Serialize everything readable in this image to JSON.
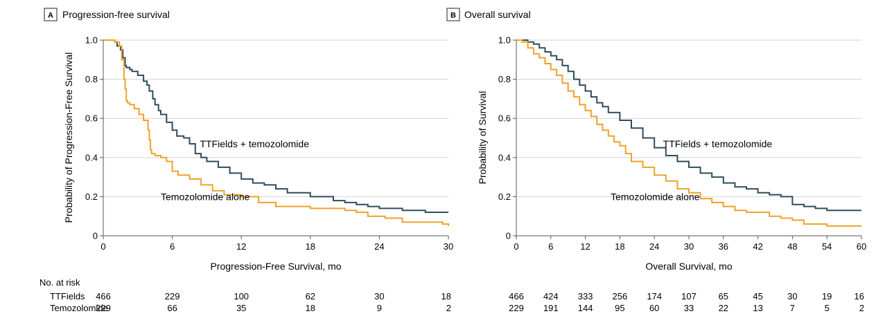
{
  "colors": {
    "ttfields": "#2e4c5a",
    "temozolomide": "#f0a12a",
    "grid": "#d4d4d4",
    "axis": "#555555"
  },
  "chart_data": [
    {
      "type": "line",
      "panel_letter": "A",
      "title": "Progression-free survival",
      "xlabel": "Progression-Free Survival, mo",
      "ylabel": "Probability of Progression-Free Survival",
      "xlim": [
        0,
        30
      ],
      "ylim": [
        0,
        1
      ],
      "xticks": [
        0,
        6,
        12,
        18,
        24,
        30
      ],
      "yticks": [
        0,
        0.2,
        0.4,
        0.6,
        0.8,
        1.0
      ],
      "ytick_labels": [
        "0",
        "0.2",
        "0.4",
        "0.6",
        "0.8",
        "1.0"
      ],
      "grid": true,
      "series": [
        {
          "name": "TTFields + temozolomide",
          "color_key": "ttfields",
          "x": [
            0,
            1.0,
            1.2,
            1.5,
            1.7,
            1.9,
            2.0,
            2.3,
            2.5,
            3.0,
            3.5,
            3.8,
            4.0,
            4.3,
            4.5,
            4.8,
            5.0,
            5.5,
            6.0,
            6.4,
            7.0,
            7.5,
            8.0,
            8.5,
            9.0,
            10.0,
            11.0,
            12.0,
            13.0,
            14.0,
            15.0,
            16.0,
            18.0,
            20.0,
            21.0,
            22.0,
            23.0,
            24.0,
            26.0,
            28.0,
            30.0
          ],
          "y": [
            1.0,
            0.99,
            0.97,
            0.95,
            0.91,
            0.87,
            0.86,
            0.85,
            0.84,
            0.82,
            0.79,
            0.77,
            0.74,
            0.7,
            0.67,
            0.64,
            0.62,
            0.58,
            0.54,
            0.51,
            0.5,
            0.47,
            0.42,
            0.4,
            0.38,
            0.35,
            0.32,
            0.29,
            0.27,
            0.26,
            0.24,
            0.22,
            0.2,
            0.18,
            0.17,
            0.16,
            0.15,
            0.14,
            0.13,
            0.12,
            0.12
          ]
        },
        {
          "name": "Temozolomide alone",
          "color_key": "temozolomide",
          "x": [
            0,
            0.6,
            1.0,
            1.4,
            1.6,
            1.8,
            1.9,
            2.0,
            2.1,
            2.3,
            2.7,
            3.1,
            3.5,
            3.9,
            4.0,
            4.1,
            4.2,
            4.5,
            5.0,
            5.5,
            6.0,
            6.5,
            7.5,
            8.5,
            9.5,
            10.5,
            12.0,
            13.5,
            15.0,
            18.0,
            21.0,
            22.0,
            23.0,
            24.5,
            26.0,
            28.0,
            29.5,
            30.0
          ],
          "y": [
            1.0,
            1.0,
            0.99,
            0.97,
            0.9,
            0.8,
            0.75,
            0.69,
            0.68,
            0.67,
            0.65,
            0.62,
            0.59,
            0.54,
            0.49,
            0.44,
            0.42,
            0.41,
            0.4,
            0.38,
            0.33,
            0.31,
            0.29,
            0.26,
            0.23,
            0.21,
            0.2,
            0.17,
            0.15,
            0.14,
            0.13,
            0.12,
            0.1,
            0.09,
            0.07,
            0.07,
            0.06,
            0.05
          ]
        }
      ],
      "annotations": [
        {
          "text": "TTFields + temozolomide",
          "x": 8.4,
          "y": 0.47
        },
        {
          "text": "Temozolomide alone",
          "x": 5.0,
          "y": 0.2
        }
      ],
      "risk_table": {
        "title": "No. at risk",
        "times": [
          0,
          6,
          12,
          18,
          24,
          30
        ],
        "rows": [
          {
            "label": "TTFields",
            "values": [
              466,
              229,
              100,
              62,
              30,
              18
            ]
          },
          {
            "label": "Temozolomide",
            "values": [
              229,
              66,
              35,
              18,
              9,
              2
            ]
          }
        ]
      }
    },
    {
      "type": "line",
      "panel_letter": "B",
      "title": "Overall survival",
      "xlabel": "Overall Survival, mo",
      "ylabel": "Probability of Survival",
      "xlim": [
        0,
        60
      ],
      "ylim": [
        0,
        1
      ],
      "xticks": [
        0,
        6,
        12,
        18,
        24,
        30,
        36,
        42,
        48,
        54,
        60
      ],
      "yticks": [
        0,
        0.2,
        0.4,
        0.6,
        0.8,
        1.0
      ],
      "ytick_labels": [
        "0",
        "0.2",
        "0.4",
        "0.6",
        "0.8",
        "1.0"
      ],
      "grid": true,
      "series": [
        {
          "name": "TTFields + temozolomide",
          "color_key": "ttfields",
          "x": [
            0,
            2,
            3,
            4,
            5,
            6,
            7,
            8,
            9,
            10,
            11,
            12,
            13,
            14,
            15,
            16,
            18,
            20,
            22,
            24,
            26,
            28,
            30,
            32,
            34,
            36,
            38,
            40,
            42,
            44,
            46,
            47.5,
            48,
            50,
            52,
            54,
            56,
            58,
            60
          ],
          "y": [
            1.0,
            0.99,
            0.98,
            0.96,
            0.94,
            0.92,
            0.9,
            0.87,
            0.84,
            0.8,
            0.77,
            0.74,
            0.71,
            0.68,
            0.66,
            0.63,
            0.59,
            0.55,
            0.5,
            0.45,
            0.41,
            0.38,
            0.35,
            0.32,
            0.3,
            0.27,
            0.25,
            0.24,
            0.22,
            0.21,
            0.2,
            0.2,
            0.16,
            0.15,
            0.14,
            0.13,
            0.13,
            0.13,
            0.13
          ]
        },
        {
          "name": "Temozolomide alone",
          "color_key": "temozolomide",
          "x": [
            0,
            1,
            2,
            3,
            4,
            5,
            6,
            7,
            8,
            9,
            10,
            11,
            12,
            13,
            14,
            15,
            16,
            17,
            18,
            19,
            20,
            22,
            24,
            26,
            28,
            30,
            32,
            34,
            36,
            38,
            40,
            42,
            44,
            46,
            48,
            50,
            52,
            54,
            56,
            58,
            60
          ],
          "y": [
            1.0,
            0.99,
            0.96,
            0.93,
            0.91,
            0.88,
            0.85,
            0.82,
            0.78,
            0.74,
            0.71,
            0.67,
            0.64,
            0.61,
            0.57,
            0.54,
            0.51,
            0.48,
            0.46,
            0.42,
            0.38,
            0.35,
            0.31,
            0.28,
            0.24,
            0.22,
            0.19,
            0.17,
            0.15,
            0.13,
            0.12,
            0.12,
            0.1,
            0.09,
            0.08,
            0.06,
            0.06,
            0.05,
            0.05,
            0.05,
            0.05
          ]
        }
      ],
      "annotations": [
        {
          "text": "TTFields + temozolomide",
          "x": 25.5,
          "y": 0.47
        },
        {
          "text": "Temozolomide alone",
          "x": 16.4,
          "y": 0.2
        }
      ],
      "risk_table": {
        "title": "",
        "times": [
          0,
          6,
          12,
          18,
          24,
          30,
          36,
          42,
          48,
          54,
          60
        ],
        "rows": [
          {
            "label": "",
            "values": [
              466,
              424,
              333,
              256,
              174,
              107,
              65,
              45,
              30,
              19,
              16
            ]
          },
          {
            "label": "",
            "values": [
              229,
              191,
              144,
              95,
              60,
              33,
              22,
              13,
              7,
              5,
              2
            ]
          }
        ]
      }
    }
  ]
}
